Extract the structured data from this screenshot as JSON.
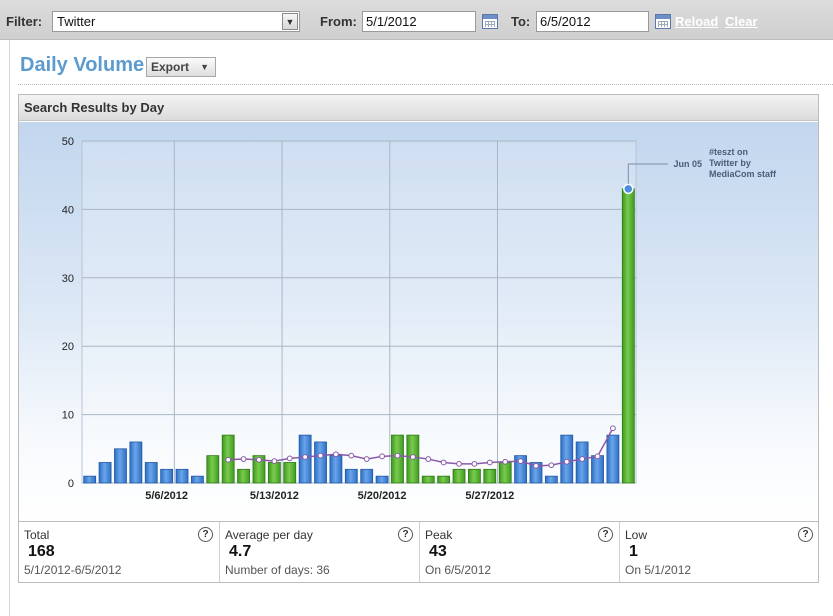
{
  "filter_bar": {
    "filter_label": "Filter:",
    "filter_value": "Twitter",
    "from_label": "From:",
    "from_value": "5/1/2012",
    "to_label": "To:",
    "to_value": "6/5/2012",
    "reload_label": "Reload",
    "clear_label": "Clear"
  },
  "header": {
    "title": "Daily Volume",
    "export_label": "Export"
  },
  "panel": {
    "title": "Search Results by Day"
  },
  "chart_data": {
    "type": "bar",
    "ylim": [
      0,
      50
    ],
    "yticks": [
      0,
      10,
      20,
      30,
      40,
      50
    ],
    "xtick_labels": [
      {
        "label": "5/6/2012",
        "index": 5
      },
      {
        "label": "5/13/2012",
        "index": 12
      },
      {
        "label": "5/20/2012",
        "index": 19
      },
      {
        "label": "5/27/2012",
        "index": 26
      }
    ],
    "categories": [
      "5/1",
      "5/2",
      "5/3",
      "5/4",
      "5/5",
      "5/6",
      "5/7",
      "5/8",
      "5/9",
      "5/10",
      "5/11",
      "5/12",
      "5/13",
      "5/14",
      "5/15",
      "5/16",
      "5/17",
      "5/18",
      "5/19",
      "5/20",
      "5/21",
      "5/22",
      "5/23",
      "5/24",
      "5/25",
      "5/26",
      "5/27",
      "5/28",
      "5/29",
      "5/30",
      "5/31",
      "6/1",
      "6/2",
      "6/3",
      "6/4",
      "6/5"
    ],
    "values": [
      1,
      3,
      5,
      6,
      3,
      2,
      2,
      1,
      4,
      7,
      2,
      4,
      3,
      3,
      7,
      6,
      4,
      2,
      2,
      1,
      7,
      7,
      1,
      1,
      2,
      2,
      2,
      3,
      4,
      3,
      1,
      7,
      6,
      4,
      7,
      43
    ],
    "weekend_color_indices": [
      8,
      9,
      10,
      11,
      12,
      13,
      20,
      21,
      22,
      23,
      24,
      25,
      26,
      27,
      35
    ],
    "colors": {
      "weekday": "#3f82d8",
      "weekend": "#4fae2c",
      "average_line": "#8a5aa8"
    },
    "average_line_from_index": 9,
    "average_values": [
      3.4,
      3.5,
      3.4,
      3.2,
      3.6,
      3.8,
      4.0,
      4.2,
      4.0,
      3.5,
      3.9,
      4.0,
      3.8,
      3.5,
      3.0,
      2.8,
      2.8,
      3.0,
      3.1,
      3.2,
      2.5,
      2.6,
      3.1,
      3.5,
      3.9,
      8.0
    ],
    "annotation": {
      "index": 35,
      "date_label": "Jun 05",
      "lines": [
        "#teszt on",
        "Twitter by",
        "MediaCom staff"
      ]
    },
    "grid": true
  },
  "stats": {
    "total": {
      "label": "Total",
      "value": "168",
      "sub": "5/1/2012-6/5/2012"
    },
    "average": {
      "label": "Average per day",
      "value": "4.7",
      "sub": "Number of days: 36"
    },
    "peak": {
      "label": "Peak",
      "value": "43",
      "sub": "On 6/5/2012"
    },
    "low": {
      "label": "Low",
      "value": "1",
      "sub": "On 5/1/2012"
    },
    "help_symbol": "?"
  }
}
